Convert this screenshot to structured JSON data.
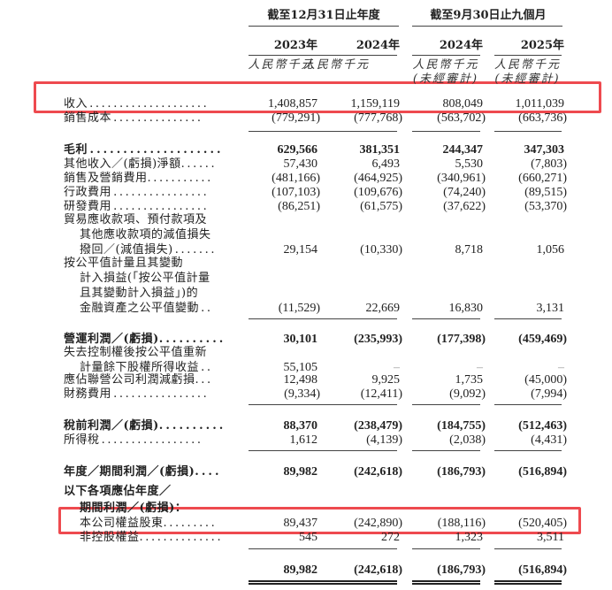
{
  "header": {
    "group1": "截至12月31日止年度",
    "group2": "截至9月30日止九個月",
    "years": [
      "2023年",
      "2024年",
      "2024年",
      "2025年"
    ],
    "unit": "人民幣千元",
    "unaudited": "(未經審計)"
  },
  "rows": [
    {
      "label": [
        "收入 . . . . . . . . . . . . . . . . . . . ."
      ],
      "values": [
        "1,408,857",
        "1,159,119",
        "808,049",
        "1,011,039"
      ],
      "bold": false
    },
    {
      "label": [
        "銷售成本 . . . . . . . . . . . . . . ."
      ],
      "values": [
        "(779,291)",
        "(777,768)",
        "(563,702)",
        "(663,736)"
      ],
      "bold": false
    },
    {
      "label": [
        "毛利 . . . . . . . . . . . . . . . . . . . ."
      ],
      "values": [
        "629,566",
        "381,351",
        "244,347",
        "347,303"
      ],
      "bold": true
    },
    {
      "label": [
        "其他收入／(虧損)淨額. . . . . ."
      ],
      "values": [
        "57,430",
        "6,493",
        "5,530",
        "(7,803)"
      ],
      "bold": false
    },
    {
      "label": [
        "銷售及營銷費用. . . . . . . . . . ."
      ],
      "values": [
        "(481,166)",
        "(464,925)",
        "(340,961)",
        "(660,271)"
      ],
      "bold": false
    },
    {
      "label": [
        "行政費用 . . . . . . . . . . . . . . . ."
      ],
      "values": [
        "(107,103)",
        "(109,676)",
        "(74,240)",
        "(89,515)"
      ],
      "bold": false
    },
    {
      "label": [
        "研發費用 . . . . . . . . . . . . . . . ."
      ],
      "values": [
        "(86,251)",
        "(61,575)",
        "(37,622)",
        "(53,370)"
      ],
      "bold": false
    },
    {
      "label": [
        "貿易應收款項、預付款項及",
        "其他應收款項的減值損失",
        "撥回／(減值損失) . . . . . . ."
      ],
      "values": [
        "29,154",
        "(10,330)",
        "8,718",
        "1,056"
      ],
      "bold": false
    },
    {
      "label": [
        "按公平值計量且其變動",
        "計入損益(「按公平值計量",
        "且其變動計入損益」)的",
        "金融資產之公平值變動 . ."
      ],
      "values": [
        "(11,529)",
        "22,669",
        "16,830",
        "3,131"
      ],
      "bold": false
    },
    {
      "label": [
        "營運利潤／(虧損). . . . . . . . . ."
      ],
      "values": [
        "30,101",
        "(235,993)",
        "(177,398)",
        "(459,469)"
      ],
      "bold": true
    },
    {
      "label": [
        "失去控制權後按公平值重新",
        "計量餘下股權所得收益 . ."
      ],
      "values": [
        "55,105",
        "–",
        "–",
        "–"
      ],
      "bold": false
    },
    {
      "label": [
        "應佔聯營公司利潤減虧損. . ."
      ],
      "values": [
        "12,498",
        "9,925",
        "1,735",
        "(45,000)"
      ],
      "bold": false
    },
    {
      "label": [
        "財務費用 . . . . . . . . . . . . . . . ."
      ],
      "values": [
        "(9,334)",
        "(12,411)",
        "(9,092)",
        "(7,994)"
      ],
      "bold": false
    },
    {
      "label": [
        "稅前利潤／(虧損). . . . . . . . . ."
      ],
      "values": [
        "88,370",
        "(238,479)",
        "(184,755)",
        "(512,463)"
      ],
      "bold": true
    },
    {
      "label": [
        "所得稅 . . . . . . . . . . . . . . . . ."
      ],
      "values": [
        "1,612",
        "(4,139)",
        "(2,038)",
        "(4,431)"
      ],
      "bold": false
    },
    {
      "label": [
        "年度／期間利潤／(虧損). . . ."
      ],
      "values": [
        "89,982",
        "(242,618)",
        "(186,793)",
        "(516,894)"
      ],
      "bold": true
    },
    {
      "label": [
        "以下各項應佔年度／",
        "期間利潤／(虧損)："
      ],
      "values": [
        "",
        "",
        "",
        ""
      ],
      "bold": true
    },
    {
      "label": [
        "本公司權益股東. . . . . . . . ."
      ],
      "values": [
        "89,437",
        "(242,890)",
        "(188,116)",
        "(520,405)"
      ],
      "bold": false
    },
    {
      "label": [
        "非控股權益. . . . . . . . . . . . . ."
      ],
      "values": [
        "545",
        "272",
        "1,323",
        "3,511"
      ],
      "bold": false
    },
    {
      "label": [
        ""
      ],
      "values": [
        "89,982",
        "(242,618)",
        "(186,793)",
        "(516,894)"
      ],
      "bold": true
    }
  ],
  "highlight_color": "#ee4a4f"
}
